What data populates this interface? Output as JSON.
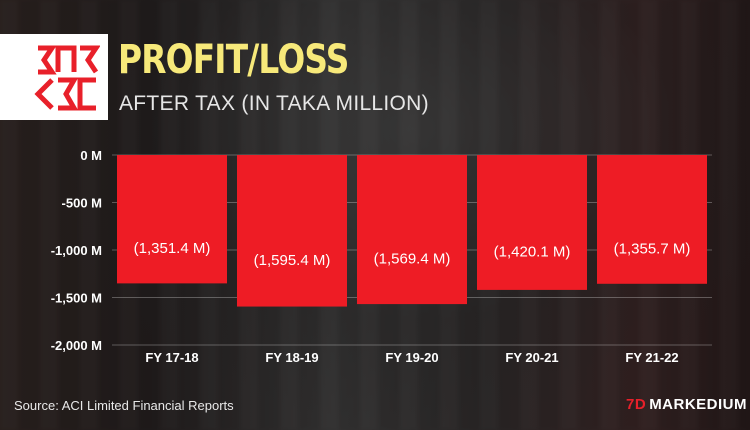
{
  "header": {
    "title": "PROFIT/LOSS",
    "subtitle": "AFTER TAX (IN TAKA MILLION)"
  },
  "logo": {
    "icon": "aci-logo-icon"
  },
  "footer": {
    "source": "Source: ACI Limited Financial Reports",
    "brand_mark": "7D",
    "brand_name": "MARKEDIUM"
  },
  "colors": {
    "bar": "#ee1c25",
    "title": "#f7e97a",
    "text": "#ffffff"
  },
  "chart_data": {
    "type": "bar",
    "categories": [
      "FY 17-18",
      "FY 18-19",
      "FY 19-20",
      "FY 20-21",
      "FY 21-22"
    ],
    "values": [
      -1351.4,
      -1595.4,
      -1569.4,
      -1420.1,
      -1355.7
    ],
    "data_labels": [
      "(1,351.4 M)",
      "(1,595.4 M)",
      "(1,569.4 M)",
      "(1,420.1 M)",
      "(1,355.7 M)"
    ],
    "ylim": [
      -2000,
      0
    ],
    "yticks": [
      0,
      -500,
      -1000,
      -1500,
      -2000
    ],
    "ytick_labels": [
      "0 M",
      "-500 M",
      "-1,000 M",
      "-1,500 M",
      "-2,000 M"
    ],
    "grid": true,
    "legend": "none"
  }
}
